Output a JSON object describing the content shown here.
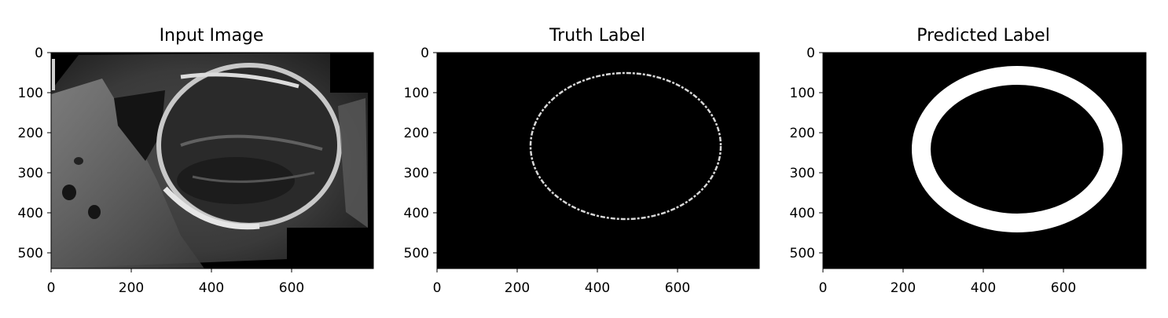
{
  "figure": {
    "panels": [
      {
        "title": "Input Image",
        "kind": "ultrasound",
        "xticks": [
          "0",
          "200",
          "400",
          "600"
        ],
        "yticks": [
          "0",
          "100",
          "200",
          "300",
          "400",
          "500"
        ]
      },
      {
        "title": "Truth Label",
        "kind": "truth",
        "xticks": [
          "0",
          "200",
          "400",
          "600"
        ],
        "yticks": [
          "0",
          "100",
          "200",
          "300",
          "400",
          "500"
        ]
      },
      {
        "title": "Predicted Label",
        "kind": "prediction",
        "xticks": [
          "0",
          "200",
          "400",
          "600"
        ],
        "yticks": [
          "0",
          "100",
          "200",
          "300",
          "400",
          "500"
        ]
      }
    ]
  },
  "colors": {
    "background": "#000000",
    "mask": "#ffffff",
    "tissue_gray": "#6e6e6e"
  }
}
